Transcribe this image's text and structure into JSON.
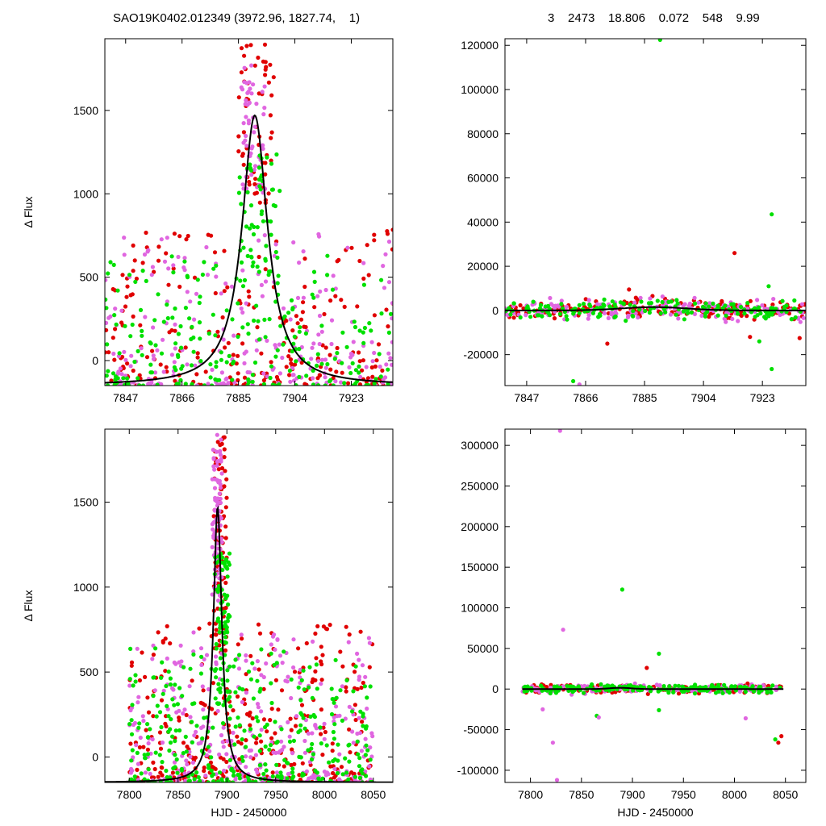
{
  "header": {
    "left": "SAO19K0402.012349 (3972.96, 1827.74,    1)",
    "right": "3    2473    18.806    0.072    548    9.99"
  },
  "colors": {
    "red": "#e00000",
    "magenta": "#e066e0",
    "green": "#00e000",
    "model": "#000000"
  },
  "chart_data": [
    {
      "type": "scatter",
      "panel": "top-left",
      "xlabel": "",
      "ylabel": "Δ Flux",
      "xlim": [
        7840,
        7937
      ],
      "ylim": [
        -150,
        1930
      ],
      "xticks": [
        7847,
        7866,
        7885,
        7904,
        7923
      ],
      "yticks": [
        0,
        500,
        1000,
        1500
      ],
      "model_curve": {
        "peak_x": 7890.5,
        "peak_y": 1470,
        "width": 5.2,
        "baseline": -150
      },
      "series": [
        {
          "color": "red",
          "x_range": [
            7840,
            7937
          ],
          "y_range": [
            -150,
            1930
          ],
          "n": 230,
          "cluster": {
            "x": 7891,
            "w": 6,
            "y_range": [
              900,
              1900
            ]
          }
        },
        {
          "color": "magenta",
          "x_range": [
            7840,
            7937
          ],
          "y_range": [
            -150,
            1870
          ],
          "n": 230,
          "cluster": {
            "x": 7890,
            "w": 4,
            "y_range": [
              1000,
              1800
            ]
          }
        },
        {
          "color": "green",
          "x_range": [
            7840,
            7937
          ],
          "y_range": [
            -150,
            1580
          ],
          "n": 230,
          "cluster": {
            "x": 7892,
            "w": 7,
            "y_range": [
              500,
              1300
            ]
          }
        }
      ]
    },
    {
      "type": "scatter",
      "panel": "top-right",
      "xlabel": "",
      "ylabel": "",
      "xlim": [
        7840,
        7937
      ],
      "ylim": [
        -34000,
        123000
      ],
      "xticks": [
        7847,
        7866,
        7885,
        7904,
        7923
      ],
      "yticks": [
        -20000,
        0,
        20000,
        40000,
        60000,
        80000,
        100000,
        120000
      ],
      "outliers": [
        {
          "x": 7890,
          "y": 122500,
          "color": "green"
        },
        {
          "x": 7926,
          "y": 43500,
          "color": "green"
        },
        {
          "x": 7914,
          "y": 26000,
          "color": "red"
        },
        {
          "x": 7925,
          "y": 11000,
          "color": "green"
        },
        {
          "x": 7880,
          "y": 9500,
          "color": "red"
        },
        {
          "x": 7873,
          "y": -15000,
          "color": "red"
        },
        {
          "x": 7919,
          "y": -12000,
          "color": "red"
        },
        {
          "x": 7922,
          "y": -14000,
          "color": "green"
        },
        {
          "x": 7926,
          "y": -26500,
          "color": "green"
        },
        {
          "x": 7862,
          "y": -32000,
          "color": "green"
        },
        {
          "x": 7864,
          "y": -33500,
          "color": "magenta"
        },
        {
          "x": 7935,
          "y": -12500,
          "color": "red"
        }
      ],
      "band": {
        "x_range": [
          7840,
          7937
        ],
        "y_spread": 4000,
        "bump": {
          "x": 7888,
          "y": 1500
        }
      }
    },
    {
      "type": "scatter",
      "panel": "bottom-left",
      "xlabel": "HJD - 2450000",
      "ylabel": "Δ Flux",
      "xlim": [
        7775,
        8070
      ],
      "ylim": [
        -150,
        1930
      ],
      "xticks": [
        7800,
        7850,
        7900,
        7950,
        8000,
        8050
      ],
      "yticks": [
        0,
        500,
        1000,
        1500
      ],
      "model_curve": {
        "peak_x": 7890.5,
        "peak_y": 1470,
        "width": 5.2,
        "baseline": -150
      },
      "series": [
        {
          "color": "red",
          "x_range": [
            7800,
            8050
          ],
          "y_range": [
            -150,
            1930
          ],
          "n": 330,
          "cluster": {
            "x": 7893,
            "w": 7,
            "y_range": [
              600,
              1900
            ]
          }
        },
        {
          "color": "magenta",
          "x_range": [
            7800,
            8050
          ],
          "y_range": [
            -150,
            1820
          ],
          "n": 330,
          "cluster": {
            "x": 7890,
            "w": 5,
            "y_range": [
              900,
              1900
            ]
          }
        },
        {
          "color": "green",
          "x_range": [
            7800,
            8050
          ],
          "y_range": [
            -150,
            1610
          ],
          "n": 330,
          "cluster": {
            "x": 7895,
            "w": 8,
            "y_range": [
              300,
              1200
            ]
          }
        }
      ]
    },
    {
      "type": "scatter",
      "panel": "bottom-right",
      "xlabel": "HJD - 2450000",
      "ylabel": "",
      "xlim": [
        7775,
        8070
      ],
      "ylim": [
        -115000,
        320000
      ],
      "xticks": [
        7800,
        7850,
        7900,
        7950,
        8000,
        8050
      ],
      "yticks": [
        -100000,
        -50000,
        0,
        50000,
        100000,
        150000,
        200000,
        250000,
        300000
      ],
      "outliers": [
        {
          "x": 7829,
          "y": 318000,
          "color": "magenta"
        },
        {
          "x": 7890,
          "y": 122500,
          "color": "green"
        },
        {
          "x": 7832,
          "y": 73000,
          "color": "magenta"
        },
        {
          "x": 7926,
          "y": 43500,
          "color": "green"
        },
        {
          "x": 7914,
          "y": 26000,
          "color": "red"
        },
        {
          "x": 7822,
          "y": -66000,
          "color": "magenta"
        },
        {
          "x": 7826,
          "y": -112000,
          "color": "magenta"
        },
        {
          "x": 7812,
          "y": -25000,
          "color": "magenta"
        },
        {
          "x": 7865,
          "y": -33000,
          "color": "green"
        },
        {
          "x": 7867,
          "y": -35000,
          "color": "magenta"
        },
        {
          "x": 8011,
          "y": -36000,
          "color": "magenta"
        },
        {
          "x": 8040,
          "y": -62000,
          "color": "green"
        },
        {
          "x": 8043,
          "y": -66000,
          "color": "red"
        },
        {
          "x": 8046,
          "y": -58000,
          "color": "red"
        },
        {
          "x": 7926,
          "y": -26000,
          "color": "green"
        }
      ],
      "band": {
        "x_range": [
          7792,
          8048
        ],
        "y_spread": 5000,
        "bump": {
          "x": 7888,
          "y": 1500
        }
      }
    }
  ]
}
